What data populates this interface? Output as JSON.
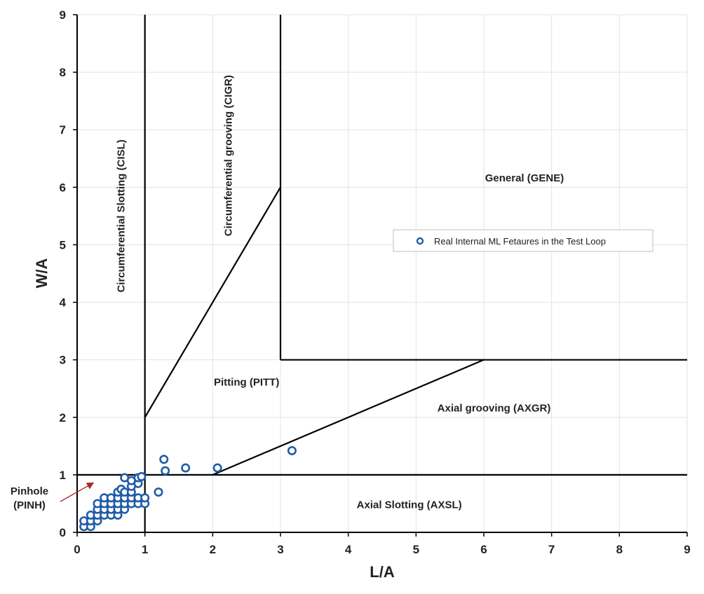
{
  "chart_data": {
    "type": "scatter",
    "xlabel": "L/A",
    "ylabel": "W/A",
    "xlim": [
      0,
      9
    ],
    "ylim": [
      0,
      9
    ],
    "xticks": [
      "0",
      "1",
      "2",
      "3",
      "4",
      "5",
      "6",
      "7",
      "8",
      "9"
    ],
    "yticks": [
      "0",
      "1",
      "2",
      "3",
      "4",
      "5",
      "6",
      "7",
      "8",
      "9"
    ],
    "grid": true,
    "legend_position": "center-right",
    "series": [
      {
        "name": "Real Internal ML Fetaures in the Test Loop",
        "marker": "circle-open",
        "color": "#1f5ba8",
        "points": [
          [
            0.1,
            0.1
          ],
          [
            0.1,
            0.2
          ],
          [
            0.2,
            0.1
          ],
          [
            0.2,
            0.2
          ],
          [
            0.2,
            0.3
          ],
          [
            0.3,
            0.2
          ],
          [
            0.3,
            0.3
          ],
          [
            0.3,
            0.4
          ],
          [
            0.3,
            0.5
          ],
          [
            0.4,
            0.3
          ],
          [
            0.4,
            0.4
          ],
          [
            0.4,
            0.5
          ],
          [
            0.4,
            0.6
          ],
          [
            0.5,
            0.3
          ],
          [
            0.5,
            0.4
          ],
          [
            0.5,
            0.5
          ],
          [
            0.5,
            0.6
          ],
          [
            0.6,
            0.3
          ],
          [
            0.6,
            0.4
          ],
          [
            0.6,
            0.5
          ],
          [
            0.6,
            0.6
          ],
          [
            0.6,
            0.7
          ],
          [
            0.65,
            0.75
          ],
          [
            0.7,
            0.4
          ],
          [
            0.7,
            0.5
          ],
          [
            0.7,
            0.6
          ],
          [
            0.7,
            0.7
          ],
          [
            0.7,
            0.95
          ],
          [
            0.8,
            0.5
          ],
          [
            0.8,
            0.6
          ],
          [
            0.8,
            0.7
          ],
          [
            0.8,
            0.8
          ],
          [
            0.8,
            0.9
          ],
          [
            0.9,
            0.5
          ],
          [
            0.9,
            0.6
          ],
          [
            0.9,
            0.85
          ],
          [
            0.9,
            0.95
          ],
          [
            0.95,
            0.97
          ],
          [
            1.0,
            0.5
          ],
          [
            1.0,
            0.6
          ],
          [
            1.2,
            0.7
          ],
          [
            1.28,
            1.27
          ],
          [
            1.3,
            1.07
          ],
          [
            1.6,
            1.12
          ],
          [
            2.07,
            1.12
          ],
          [
            3.17,
            1.42
          ]
        ]
      }
    ],
    "boundaries": [
      {
        "from": [
          1,
          0
        ],
        "to": [
          1,
          9
        ]
      },
      {
        "from": [
          0,
          1
        ],
        "to": [
          9,
          1
        ]
      },
      {
        "from": [
          1,
          2
        ],
        "to": [
          3,
          6
        ]
      },
      {
        "from": [
          3,
          9
        ],
        "to": [
          3,
          3
        ]
      },
      {
        "from": [
          3,
          3
        ],
        "to": [
          9,
          3
        ]
      },
      {
        "from": [
          2,
          1
        ],
        "to": [
          6,
          3
        ]
      }
    ],
    "regions": [
      {
        "id": "cisl",
        "label": "Circumferential Slotting (CISL)",
        "at": [
          0.7,
          5.5
        ],
        "rotate": -90
      },
      {
        "id": "cigr",
        "label": "Circumferential grooving (CIGR)",
        "at": [
          2.28,
          6.55
        ],
        "rotate": -90
      },
      {
        "id": "gene",
        "label": "General (GENE)",
        "at": [
          6.6,
          6.1
        ]
      },
      {
        "id": "pitt",
        "label": "Pitting (PITT)",
        "at": [
          2.5,
          2.55
        ]
      },
      {
        "id": "axgr",
        "label": "Axial grooving (AXGR)",
        "at": [
          6.15,
          2.1
        ]
      },
      {
        "id": "axsl",
        "label": "Axial Slotting (AXSL)",
        "at": [
          4.9,
          0.42
        ]
      }
    ],
    "annotations": [
      {
        "id": "pinh",
        "label_lines": [
          "Pinhole",
          "(PINH)"
        ],
        "arrow_color": "#a52a2a"
      }
    ]
  }
}
